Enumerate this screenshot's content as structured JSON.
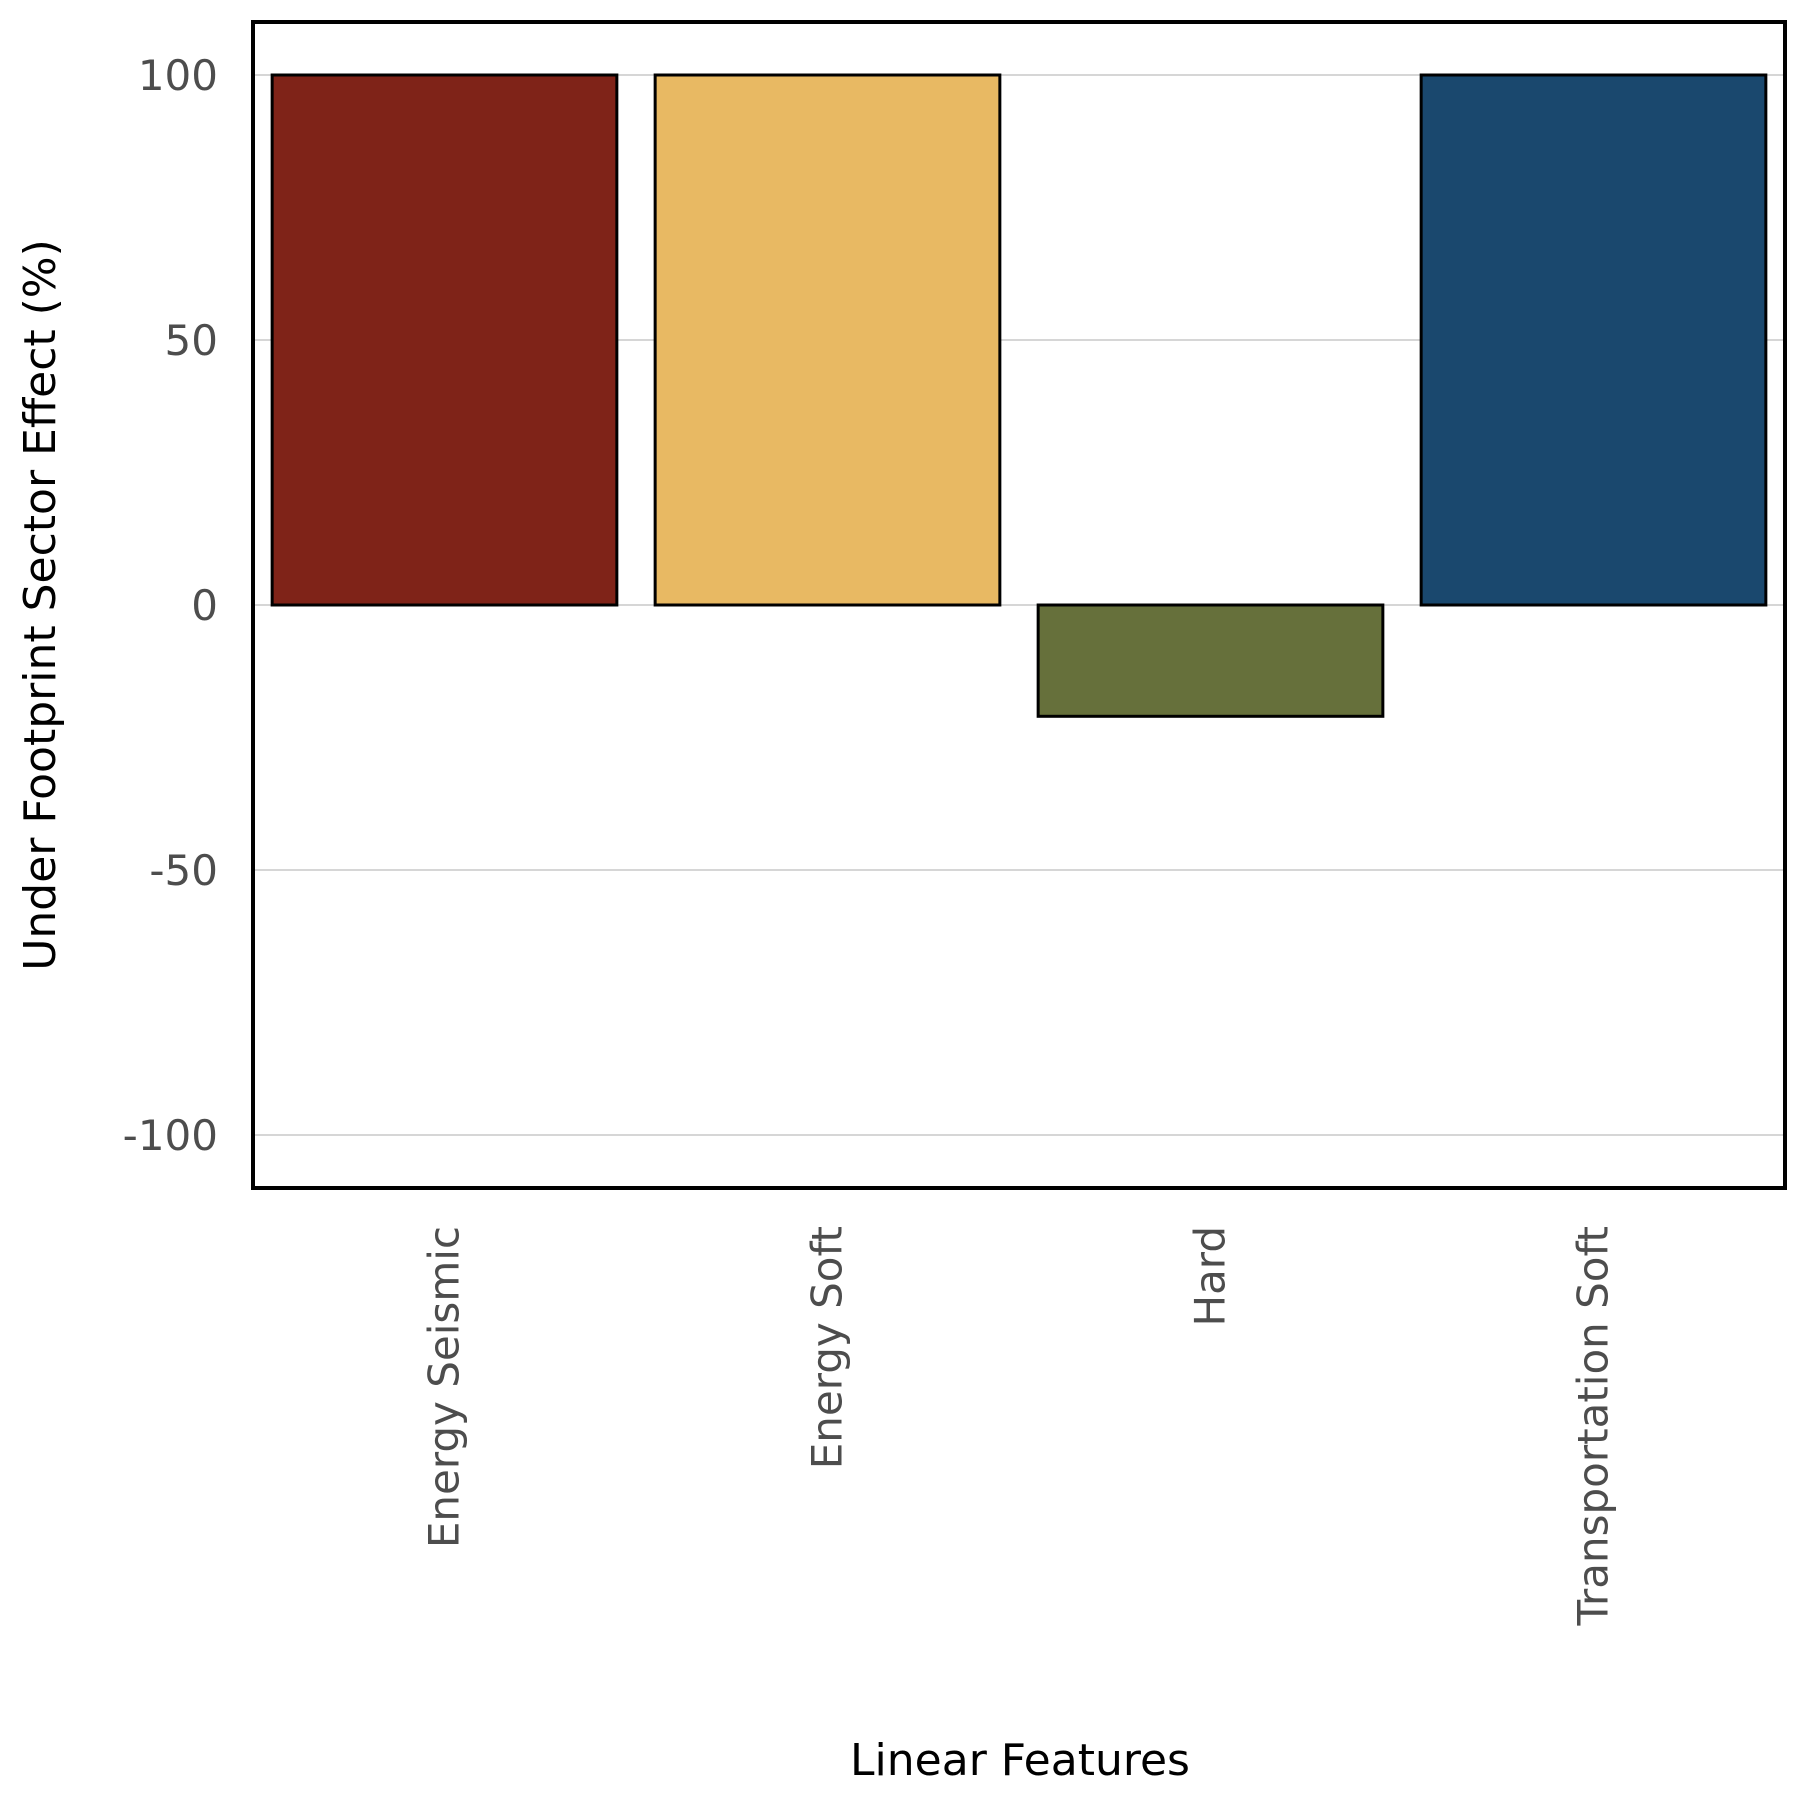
{
  "chart_data": {
    "type": "bar",
    "categories": [
      "Energy Seismic",
      "Energy Soft",
      "Hard",
      "Transportation Soft"
    ],
    "values": [
      100,
      100,
      -21,
      100
    ],
    "colors": [
      "#7f2318",
      "#e8b963",
      "#66703b",
      "#1a486e"
    ],
    "title": "",
    "xlabel": "Linear Features",
    "ylabel": "Under Footprint Sector Effect (%)",
    "ylim": [
      -110,
      110
    ],
    "yticks": [
      100,
      50,
      0,
      -50,
      -100
    ],
    "ytick_labels": [
      "100",
      "50",
      "0",
      "-50",
      "-100"
    ],
    "grid": "horizontal",
    "legend": "none"
  }
}
